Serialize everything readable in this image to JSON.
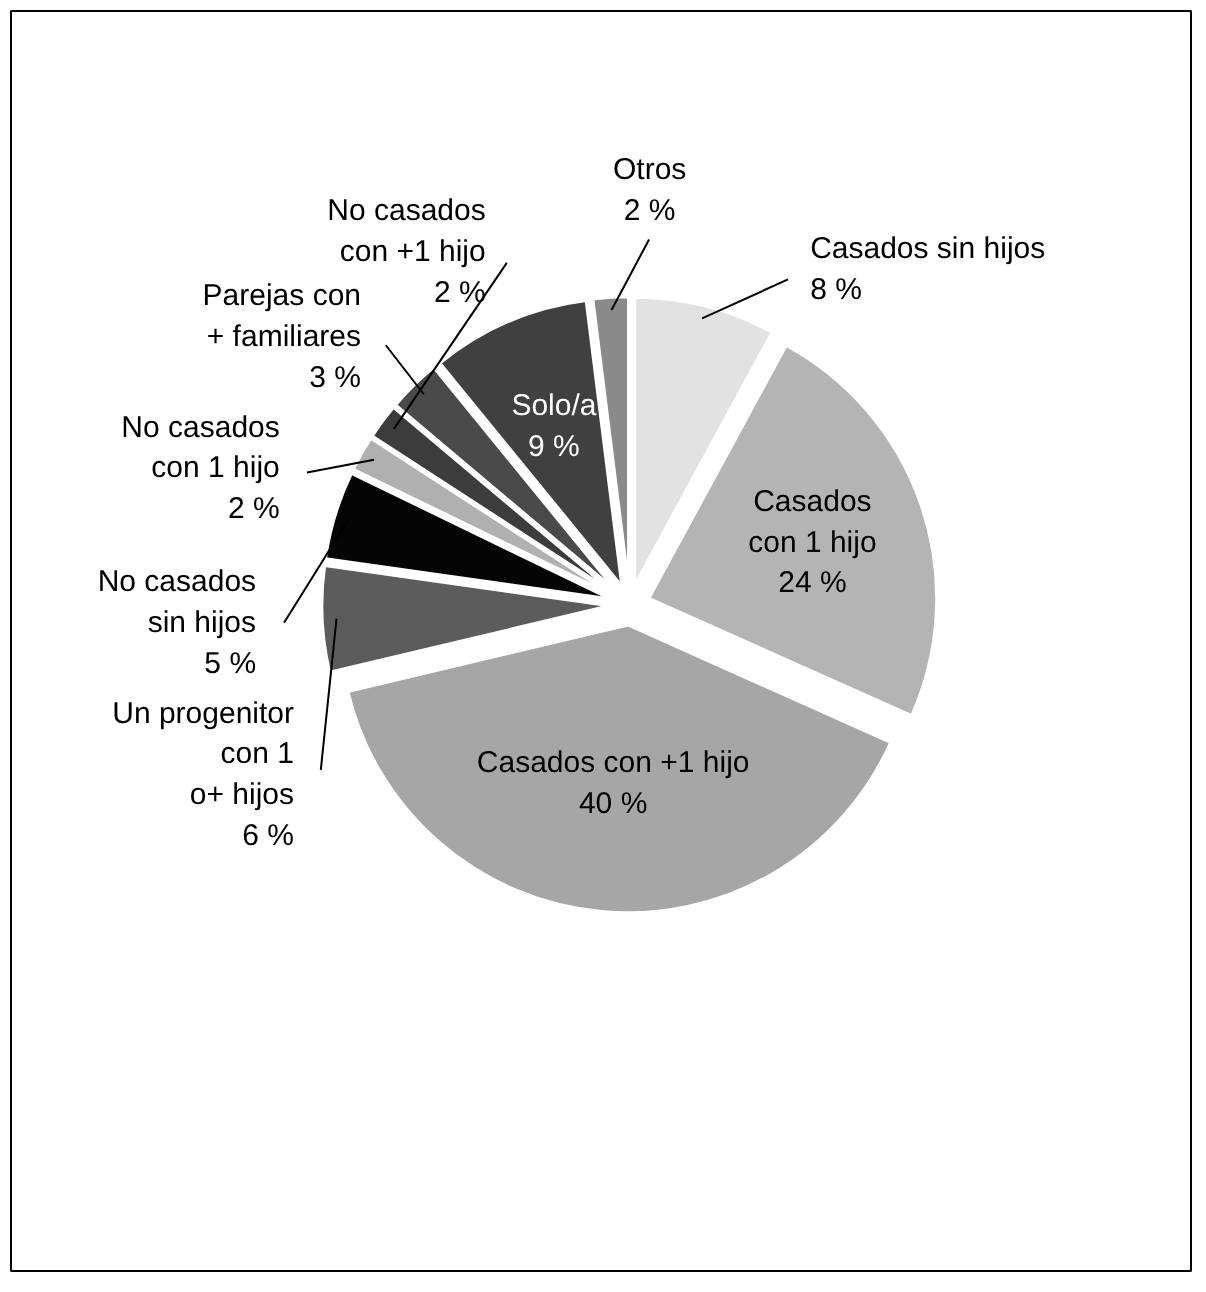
{
  "chart_data": {
    "type": "pie",
    "categories": [
      "Casados sin hijos",
      "Casados\ncon 1 hijo",
      "Casados con +1 hijo",
      "Un progenitor\ncon 1\no+ hijos",
      "No casados\nsin hijos",
      "No casados\ncon 1 hijo",
      "No casados\ncon +1 hijo",
      "Parejas con\n+ familiares",
      "Solo/a",
      "Otros"
    ],
    "values": [
      8,
      24,
      40,
      6,
      5,
      2,
      2,
      3,
      9,
      2
    ],
    "value_labels": [
      "8 %",
      "24 %",
      "40 %",
      "6 %",
      "5 %",
      "2 %",
      "2 %",
      "3 %",
      "9 %",
      "2 %"
    ],
    "colors": [
      "#e2e2e2",
      "#b4b4b4",
      "#a6a6a6",
      "#5c5c5c",
      "#050505",
      "#b0b0b0",
      "#3c3c3c",
      "#4a4a4a",
      "#404040",
      "#8a8a8a"
    ]
  }
}
